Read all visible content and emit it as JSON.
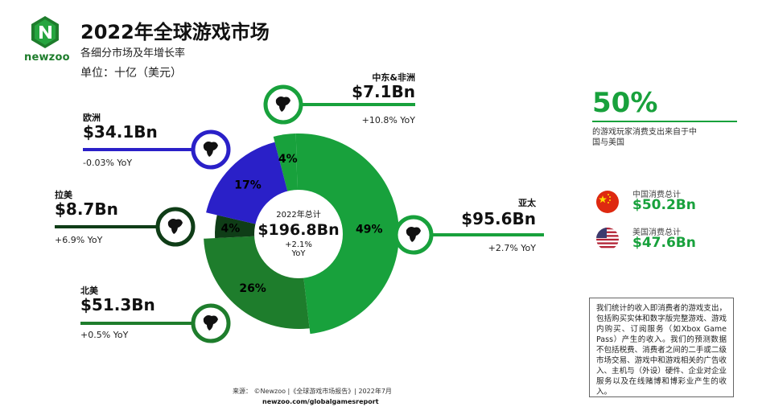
{
  "brand": {
    "name": "newzoo"
  },
  "header": {
    "title": "2022年全球游戏市场",
    "subtitle": "各细分市场及年增长率",
    "unit": "单位：十亿（美元）"
  },
  "center": {
    "label": "2022年总计",
    "value": "$196.8Bn",
    "growth": "+2.1%",
    "growth_unit": "YoY"
  },
  "side": {
    "big_pct": "50%",
    "big_pct_desc": "的游戏玩家消费支出来自于中国与美国",
    "china_label": "中国消费总计",
    "china_value": "$50.2Bn",
    "us_label": "美国消费总计",
    "us_value": "$47.6Bn",
    "note": "我们统计的收入即消费者的游戏支出，包括购买实体和数字版完整游戏、游戏内购买、订阅服务（如Xbox Game Pass）产生的收入。我们的预测数据不包括税费、消费者之间的二手或二级市场交易、游戏中和游戏相关的广告收入、主机与（外设）硬件、企业对企业服务以及在线赌博和博彩业产生的收入。"
  },
  "footer": {
    "source": "来源： ©Newzoo |《全球游戏市场报告》| 2022年7月",
    "url": "newzoo.com/globalgamesreport"
  },
  "chart_data": {
    "type": "pie",
    "title": "2022年全球游戏市场",
    "total": 196.8,
    "series": [
      {
        "name": "中东&非洲",
        "value": 7.1,
        "label": "$7.1Bn",
        "percent": "4%",
        "yoy": "+10.8% YoY",
        "color": "#18a13c"
      },
      {
        "name": "亚太",
        "value": 95.6,
        "label": "$95.6Bn",
        "percent": "49%",
        "yoy": "+2.7% YoY",
        "color": "#18a13c"
      },
      {
        "name": "北美",
        "value": 51.3,
        "label": "$51.3Bn",
        "percent": "26%",
        "yoy": "+0.5% YoY",
        "color": "#1e7d2c"
      },
      {
        "name": "拉美",
        "value": 8.7,
        "label": "$8.7Bn",
        "percent": "4%",
        "yoy": "+6.9% YoY",
        "color": "#0f3d17"
      },
      {
        "name": "欧洲",
        "value": 34.1,
        "label": "$34.1Bn",
        "percent": "17%",
        "yoy": "-0.03% YoY",
        "color": "#2a20c8"
      }
    ]
  },
  "colors": {
    "green": "#18a13c",
    "dark_green": "#1e7d2c",
    "darkest_green": "#0f3d17",
    "blue": "#2a20c8"
  }
}
